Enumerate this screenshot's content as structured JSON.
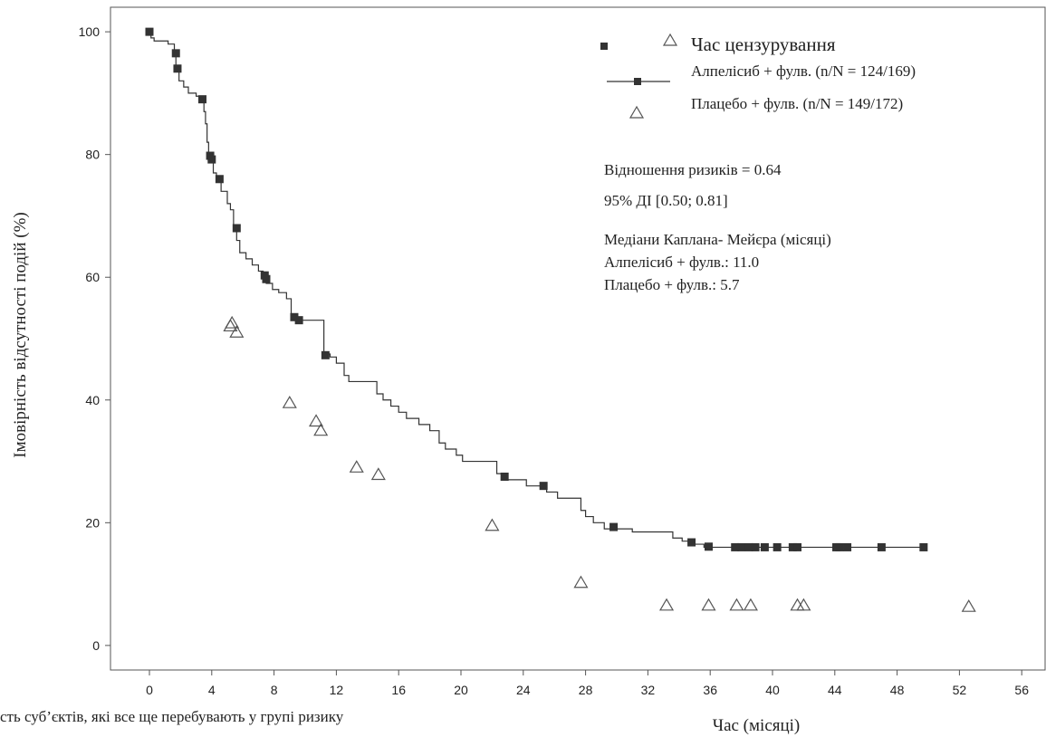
{
  "footer_note": "сть суб’єктів, які все ще перебувають у групі ризику",
  "colors": {
    "line": "#333333",
    "marker": "#333333",
    "triangle": "#555555",
    "frame": "#555555"
  },
  "legend": {
    "censor_label": "Час цензурування",
    "series_a": "Алпелісиб + фулв. (n/N = 124/169)",
    "series_b": "Плацебо + фулв. (n/N = 149/172)"
  },
  "stats": {
    "hr": "Відношення ризиків = 0.64",
    "ci": "95% ДІ [0.50; 0.81]",
    "median_title": "Медіани Каплана- Мейєра (місяці)",
    "median_a": "Алпелісиб + фулв.: 11.0",
    "median_b": "Плацебо + фулв.: 5.7"
  },
  "chart_data": {
    "type": "line",
    "xlabel": "Час (місяці)",
    "ylabel": "Імовірність відсутності подій (%)",
    "xlim": [
      -2.5,
      57.5
    ],
    "ylim": [
      -4,
      104
    ],
    "xticks": [
      0,
      4,
      8,
      12,
      16,
      20,
      24,
      28,
      32,
      36,
      40,
      44,
      48,
      52,
      56
    ],
    "yticks": [
      0,
      20,
      40,
      60,
      80,
      100
    ],
    "series": [
      {
        "name": "Алпелісиб + фулв. (n/N = 124/169)",
        "step_points": [
          [
            0,
            100
          ],
          [
            0.1,
            99
          ],
          [
            0.3,
            98.5
          ],
          [
            1.2,
            98
          ],
          [
            1.6,
            96
          ],
          [
            1.7,
            94
          ],
          [
            1.9,
            92
          ],
          [
            2.2,
            91
          ],
          [
            2.5,
            90
          ],
          [
            3,
            89.5
          ],
          [
            3.3,
            89
          ],
          [
            3.5,
            87
          ],
          [
            3.6,
            85
          ],
          [
            3.7,
            82
          ],
          [
            3.8,
            80
          ],
          [
            3.9,
            79
          ],
          [
            4.1,
            77
          ],
          [
            4.3,
            76
          ],
          [
            4.6,
            74
          ],
          [
            5,
            72
          ],
          [
            5.2,
            71
          ],
          [
            5.4,
            68
          ],
          [
            5.6,
            66
          ],
          [
            5.8,
            64
          ],
          [
            6.2,
            63
          ],
          [
            6.6,
            62
          ],
          [
            7,
            61
          ],
          [
            7.3,
            60
          ],
          [
            7.5,
            59
          ],
          [
            7.9,
            58
          ],
          [
            8.3,
            57.5
          ],
          [
            8.8,
            56.5
          ],
          [
            9.1,
            54
          ],
          [
            9.3,
            53
          ],
          [
            9.5,
            53
          ],
          [
            11,
            53
          ],
          [
            11.2,
            47.5
          ],
          [
            11.6,
            47
          ],
          [
            12,
            46
          ],
          [
            12.5,
            44
          ],
          [
            12.8,
            43
          ],
          [
            14.3,
            43
          ],
          [
            14.6,
            41
          ],
          [
            15,
            40
          ],
          [
            15.5,
            39
          ],
          [
            16,
            38
          ],
          [
            16.5,
            37
          ],
          [
            17.3,
            36
          ],
          [
            18,
            35
          ],
          [
            18.6,
            33
          ],
          [
            19,
            32
          ],
          [
            19.7,
            31
          ],
          [
            20.1,
            30
          ],
          [
            22,
            30
          ],
          [
            22.3,
            28
          ],
          [
            22.7,
            27
          ],
          [
            23.6,
            27
          ],
          [
            24.2,
            26
          ],
          [
            24.7,
            26
          ],
          [
            25.5,
            25
          ],
          [
            26.2,
            24
          ],
          [
            27.5,
            24
          ],
          [
            27.7,
            22
          ],
          [
            28,
            21
          ],
          [
            28.5,
            20
          ],
          [
            29.2,
            19
          ],
          [
            30.3,
            19
          ],
          [
            31,
            18.5
          ],
          [
            33.2,
            18.5
          ],
          [
            33.6,
            17.5
          ],
          [
            34.2,
            17
          ],
          [
            35,
            16.5
          ],
          [
            35.6,
            16
          ],
          [
            49.7,
            16
          ]
        ],
        "censor_marks": [
          [
            0,
            100
          ],
          [
            1.7,
            96.5
          ],
          [
            1.8,
            94
          ],
          [
            3.4,
            89
          ],
          [
            3.9,
            79.8
          ],
          [
            4,
            79.2
          ],
          [
            4.5,
            76
          ],
          [
            5.6,
            68
          ],
          [
            7.4,
            60.3
          ],
          [
            7.5,
            59.7
          ],
          [
            9.3,
            53.5
          ],
          [
            9.6,
            53
          ],
          [
            11.3,
            47.3
          ],
          [
            22.8,
            27.5
          ],
          [
            25.3,
            26
          ],
          [
            29.8,
            19.3
          ],
          [
            35.9,
            16.1
          ],
          [
            34.8,
            16.8
          ],
          [
            37.6,
            16
          ],
          [
            38,
            16
          ],
          [
            38.5,
            16
          ],
          [
            38.9,
            16
          ],
          [
            39.5,
            16
          ],
          [
            40.3,
            16
          ],
          [
            41.3,
            16
          ],
          [
            41.6,
            16
          ],
          [
            44.1,
            16
          ],
          [
            44.3,
            16
          ],
          [
            44.8,
            16
          ],
          [
            47,
            16
          ],
          [
            49.7,
            16
          ]
        ]
      },
      {
        "name": "Плацебо + фулв. (n/N = 149/172)",
        "censor_marks": [
          [
            5.3,
            52.5
          ],
          [
            5.2,
            52
          ],
          [
            5.6,
            51
          ],
          [
            9,
            39.5
          ],
          [
            10.7,
            36.5
          ],
          [
            11,
            35
          ],
          [
            13.3,
            29
          ],
          [
            14.7,
            27.8
          ],
          [
            22,
            19.5
          ],
          [
            27.7,
            10.2
          ],
          [
            33.2,
            6.5
          ],
          [
            35.9,
            6.5
          ],
          [
            37.7,
            6.5
          ],
          [
            38.6,
            6.5
          ],
          [
            41.6,
            6.5
          ],
          [
            42,
            6.5
          ],
          [
            52.6,
            6.3
          ]
        ]
      }
    ]
  }
}
